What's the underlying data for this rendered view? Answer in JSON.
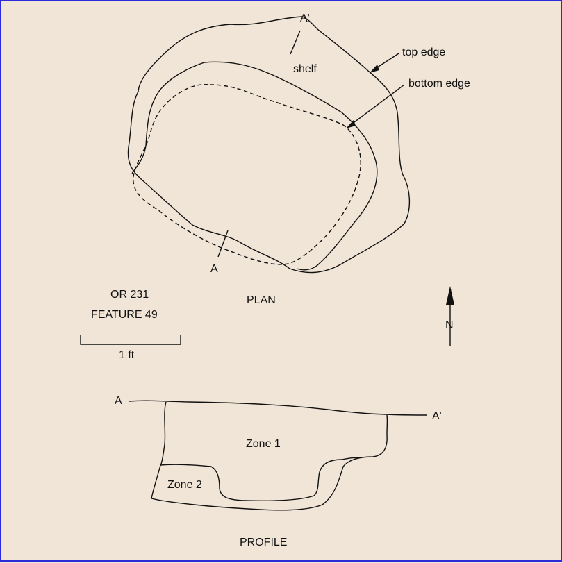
{
  "plan": {
    "heading": "PLAN",
    "section_start_label": "A",
    "section_end_label": "A'",
    "shelf_label": "shelf",
    "top_edge_label": "top edge",
    "bottom_edge_label": "bottom edge"
  },
  "site": {
    "site_id": "OR 231",
    "feature": "FEATURE 49"
  },
  "scale": {
    "label": "1 ft"
  },
  "north_arrow": {
    "label": "N"
  },
  "profile": {
    "heading": "PROFILE",
    "left_label": "A",
    "right_label": "A'",
    "zone1_label": "Zone 1",
    "zone2_label": "Zone 2"
  }
}
